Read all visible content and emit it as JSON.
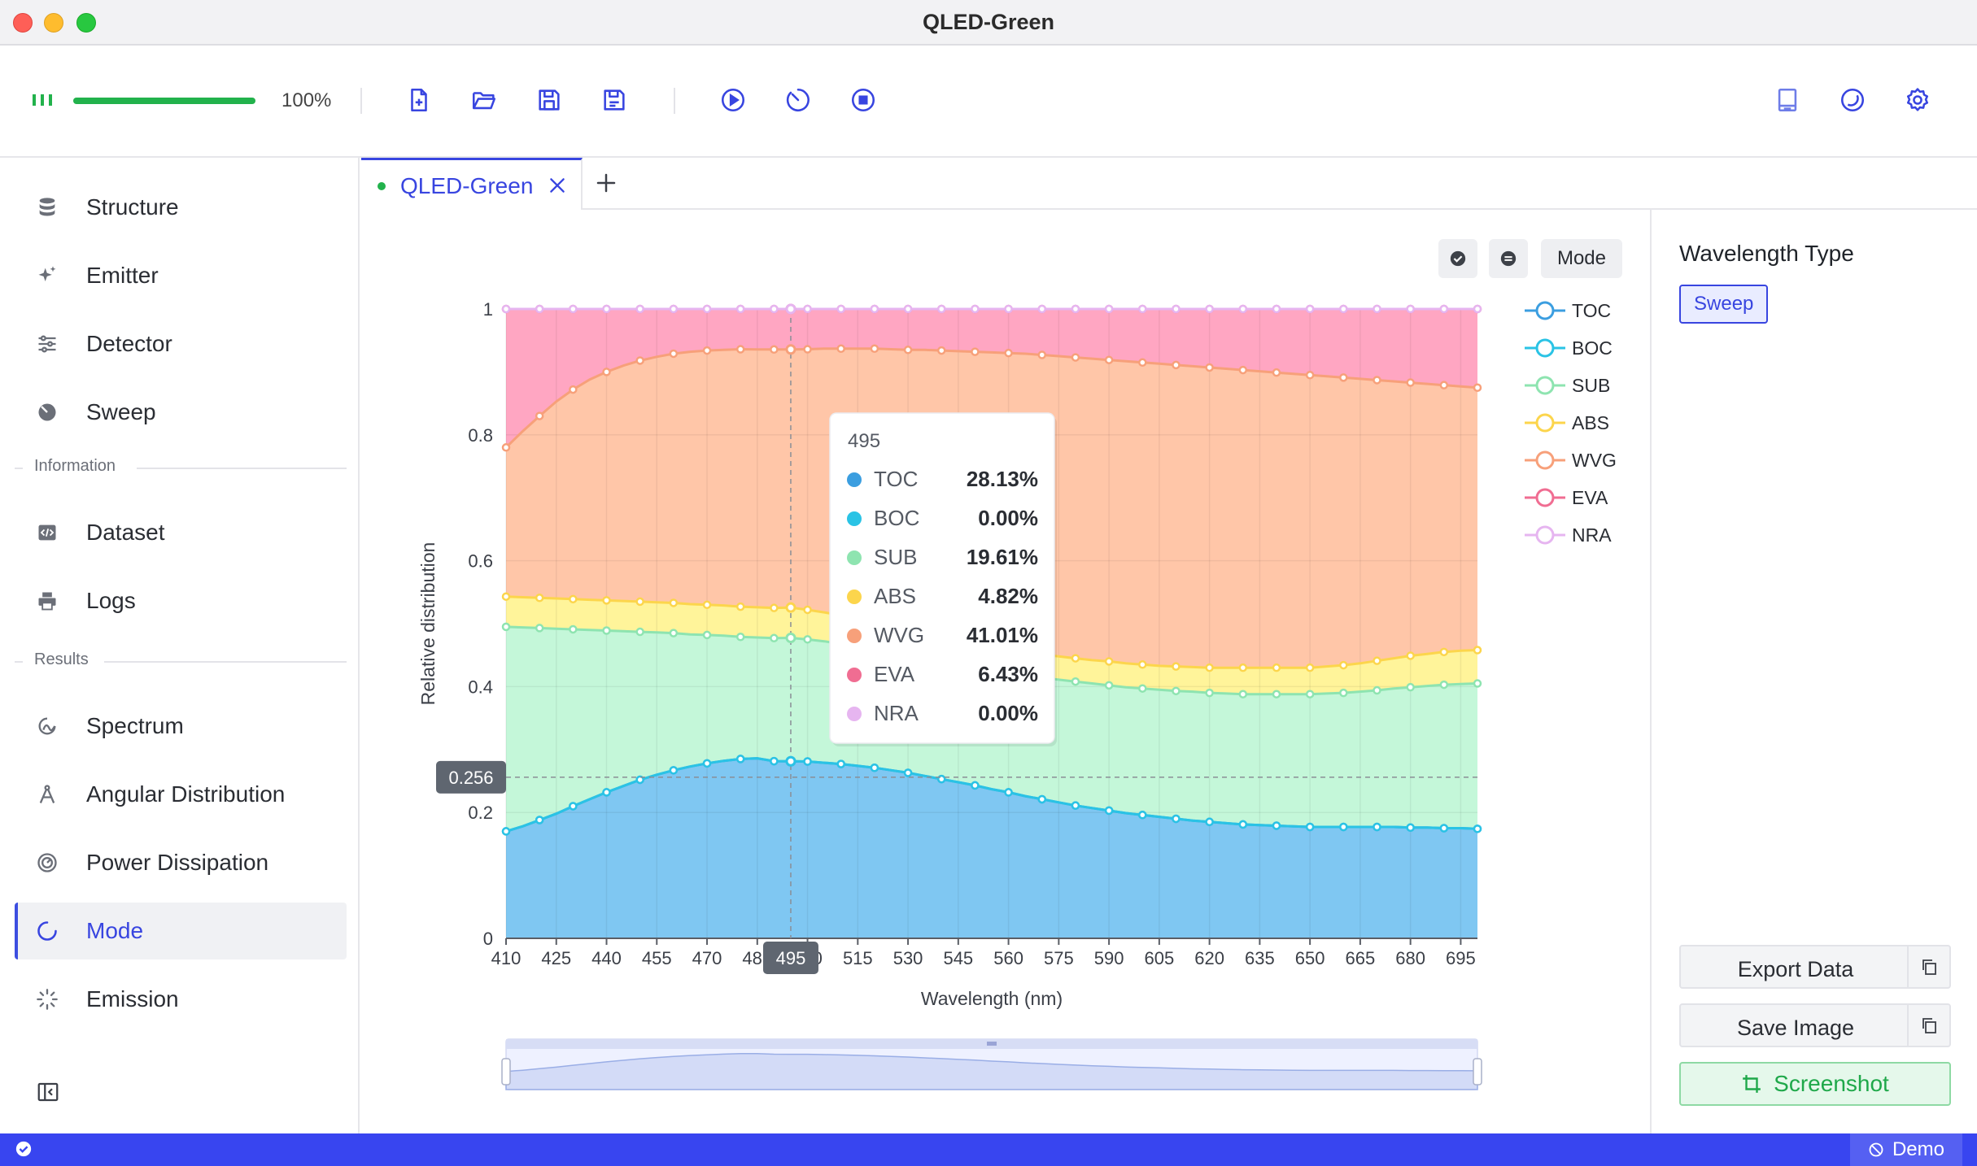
{
  "window": {
    "title": "QLED-Green"
  },
  "toolbar": {
    "progress": 1.0,
    "progress_text": "100%",
    "icons": [
      "signal-icon",
      "new-file-icon",
      "open-folder-icon",
      "save-icon",
      "save-as-icon",
      "run-icon",
      "timer-icon",
      "stop-icon",
      "layout-icon",
      "theme-icon",
      "settings-icon"
    ]
  },
  "sidebar": {
    "items": [
      {
        "label": "Structure",
        "icon": "database-icon"
      },
      {
        "label": "Emitter",
        "icon": "sparkle-icon"
      },
      {
        "label": "Detector",
        "icon": "sliders-icon"
      },
      {
        "label": "Sweep",
        "icon": "sweep-icon"
      }
    ],
    "section_information": "Information",
    "info_items": [
      {
        "label": "Dataset",
        "icon": "code-icon"
      },
      {
        "label": "Logs",
        "icon": "printer-icon"
      }
    ],
    "section_results": "Results",
    "result_items": [
      {
        "label": "Spectrum",
        "icon": "spectrum-icon"
      },
      {
        "label": "Angular Distribution",
        "icon": "compass-icon"
      },
      {
        "label": "Power Dissipation",
        "icon": "gauge-icon"
      },
      {
        "label": "Mode",
        "icon": "mode-icon",
        "active": true
      },
      {
        "label": "Emission",
        "icon": "loader-icon"
      }
    ]
  },
  "tabs": {
    "active": "QLED-Green",
    "add": "+"
  },
  "chart_controls": {
    "mode_label": "Mode"
  },
  "right_panel": {
    "title": "Wavelength Type",
    "sweep_label": "Sweep",
    "export_label": "Export Data",
    "save_label": "Save Image",
    "screenshot_label": "Screenshot"
  },
  "status": {
    "demo_label": "Demo"
  },
  "colors": {
    "TOC": "#3b9ee0",
    "BOC": "#2ac3e5",
    "SUB": "#8ee4b0",
    "ABS": "#fcd54c",
    "WVG": "#f7a07a",
    "EVA": "#f06d92",
    "NRA": "#e6b5f0",
    "accent": "#3845e0",
    "success": "#22b24c"
  },
  "chart_data": {
    "type": "area",
    "xlabel": "Wavelength (nm)",
    "ylabel": "Relative distribution",
    "ylim": [
      0,
      1
    ],
    "yticks": [
      0,
      0.2,
      0.4,
      0.6,
      0.8,
      1
    ],
    "xtick_labels": [
      410,
      425,
      440,
      455,
      470,
      485,
      500,
      515,
      530,
      545,
      560,
      575,
      590,
      605,
      620,
      635,
      650,
      665,
      680,
      695
    ],
    "x": [
      410,
      415,
      420,
      425,
      430,
      435,
      440,
      445,
      450,
      455,
      460,
      465,
      470,
      475,
      480,
      485,
      490,
      495,
      500,
      505,
      510,
      515,
      520,
      525,
      530,
      535,
      540,
      545,
      550,
      555,
      560,
      565,
      570,
      575,
      580,
      585,
      590,
      595,
      600,
      605,
      610,
      615,
      620,
      625,
      630,
      635,
      640,
      645,
      650,
      655,
      660,
      665,
      670,
      675,
      680,
      685,
      690,
      695,
      700
    ],
    "stacked": true,
    "legend_position": "right",
    "series": [
      {
        "name": "TOC",
        "cumulative": [
          0.17,
          0.178,
          0.188,
          0.198,
          0.21,
          0.221,
          0.232,
          0.242,
          0.252,
          0.26,
          0.267,
          0.273,
          0.278,
          0.282,
          0.285,
          0.286,
          0.2815,
          0.2813,
          0.281,
          0.279,
          0.277,
          0.274,
          0.271,
          0.267,
          0.263,
          0.258,
          0.253,
          0.248,
          0.243,
          0.237,
          0.232,
          0.226,
          0.221,
          0.216,
          0.211,
          0.207,
          0.203,
          0.199,
          0.196,
          0.193,
          0.19,
          0.187,
          0.185,
          0.183,
          0.181,
          0.18,
          0.179,
          0.178,
          0.177,
          0.177,
          0.177,
          0.177,
          0.177,
          0.177,
          0.176,
          0.176,
          0.175,
          0.175,
          0.174
        ]
      },
      {
        "name": "BOC",
        "cumulative": [
          0.17,
          0.178,
          0.188,
          0.198,
          0.21,
          0.221,
          0.232,
          0.242,
          0.252,
          0.26,
          0.267,
          0.273,
          0.278,
          0.282,
          0.285,
          0.286,
          0.2815,
          0.2813,
          0.281,
          0.279,
          0.277,
          0.274,
          0.271,
          0.267,
          0.263,
          0.258,
          0.253,
          0.248,
          0.243,
          0.237,
          0.232,
          0.226,
          0.221,
          0.216,
          0.211,
          0.207,
          0.203,
          0.199,
          0.196,
          0.193,
          0.19,
          0.187,
          0.185,
          0.183,
          0.181,
          0.18,
          0.179,
          0.178,
          0.177,
          0.177,
          0.177,
          0.177,
          0.177,
          0.177,
          0.176,
          0.176,
          0.175,
          0.175,
          0.174
        ]
      },
      {
        "name": "SUB",
        "cumulative": [
          0.495,
          0.494,
          0.493,
          0.492,
          0.491,
          0.49,
          0.489,
          0.488,
          0.487,
          0.486,
          0.485,
          0.483,
          0.482,
          0.481,
          0.479,
          0.478,
          0.477,
          0.4774,
          0.475,
          0.472,
          0.468,
          0.464,
          0.459,
          0.454,
          0.449,
          0.444,
          0.438,
          0.433,
          0.428,
          0.424,
          0.42,
          0.417,
          0.414,
          0.411,
          0.408,
          0.405,
          0.402,
          0.399,
          0.397,
          0.395,
          0.393,
          0.392,
          0.39,
          0.389,
          0.388,
          0.388,
          0.388,
          0.388,
          0.388,
          0.389,
          0.39,
          0.392,
          0.394,
          0.397,
          0.399,
          0.401,
          0.403,
          0.404,
          0.405
        ]
      },
      {
        "name": "ABS",
        "cumulative": [
          0.543,
          0.542,
          0.541,
          0.54,
          0.539,
          0.538,
          0.537,
          0.536,
          0.535,
          0.534,
          0.533,
          0.531,
          0.53,
          0.529,
          0.527,
          0.526,
          0.525,
          0.5256,
          0.522,
          0.518,
          0.513,
          0.507,
          0.501,
          0.495,
          0.489,
          0.483,
          0.477,
          0.472,
          0.467,
          0.462,
          0.458,
          0.454,
          0.451,
          0.448,
          0.445,
          0.442,
          0.44,
          0.437,
          0.435,
          0.433,
          0.432,
          0.431,
          0.43,
          0.43,
          0.43,
          0.43,
          0.43,
          0.43,
          0.43,
          0.432,
          0.434,
          0.437,
          0.441,
          0.445,
          0.449,
          0.452,
          0.455,
          0.457,
          0.458
        ]
      },
      {
        "name": "WVG",
        "cumulative": [
          0.78,
          0.806,
          0.83,
          0.853,
          0.872,
          0.888,
          0.9,
          0.91,
          0.918,
          0.924,
          0.929,
          0.932,
          0.934,
          0.935,
          0.936,
          0.9357,
          0.9357,
          0.9357,
          0.936,
          0.937,
          0.937,
          0.937,
          0.937,
          0.936,
          0.935,
          0.935,
          0.934,
          0.933,
          0.932,
          0.931,
          0.93,
          0.929,
          0.927,
          0.925,
          0.923,
          0.921,
          0.919,
          0.917,
          0.915,
          0.913,
          0.911,
          0.909,
          0.907,
          0.905,
          0.903,
          0.901,
          0.899,
          0.897,
          0.895,
          0.893,
          0.891,
          0.889,
          0.887,
          0.885,
          0.883,
          0.881,
          0.879,
          0.877,
          0.875
        ]
      },
      {
        "name": "EVA",
        "cumulative": [
          1,
          1,
          1,
          1,
          1,
          1,
          1,
          1,
          1,
          1,
          1,
          1,
          1,
          1,
          1,
          1,
          1,
          1,
          1,
          1,
          1,
          1,
          1,
          1,
          1,
          1,
          1,
          1,
          1,
          1,
          1,
          1,
          1,
          1,
          1,
          1,
          1,
          1,
          1,
          1,
          1,
          1,
          1,
          1,
          1,
          1,
          1,
          1,
          1,
          1,
          1,
          1,
          1,
          1,
          1,
          1,
          1,
          1,
          1
        ]
      },
      {
        "name": "NRA",
        "cumulative": [
          1,
          1,
          1,
          1,
          1,
          1,
          1,
          1,
          1,
          1,
          1,
          1,
          1,
          1,
          1,
          1,
          1,
          1,
          1,
          1,
          1,
          1,
          1,
          1,
          1,
          1,
          1,
          1,
          1,
          1,
          1,
          1,
          1,
          1,
          1,
          1,
          1,
          1,
          1,
          1,
          1,
          1,
          1,
          1,
          1,
          1,
          1,
          1,
          1,
          1,
          1,
          1,
          1,
          1,
          1,
          1,
          1,
          1,
          1
        ]
      }
    ],
    "crosshair": {
      "x": 495,
      "x_label": "495",
      "y_label": "0.256"
    },
    "tooltip": {
      "title": "495",
      "rows": [
        {
          "name": "TOC",
          "value": "28.13%"
        },
        {
          "name": "BOC",
          "value": "0.00%"
        },
        {
          "name": "SUB",
          "value": "19.61%"
        },
        {
          "name": "ABS",
          "value": "4.82%"
        },
        {
          "name": "WVG",
          "value": "41.01%"
        },
        {
          "name": "EVA",
          "value": "6.43%"
        },
        {
          "name": "NRA",
          "value": "0.00%"
        }
      ]
    }
  }
}
